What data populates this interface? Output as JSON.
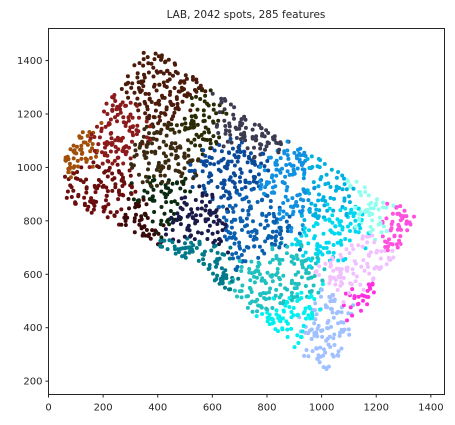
{
  "chart_data": {
    "type": "scatter",
    "title": "LAB, 2042 spots, 285 features",
    "xlabel": "",
    "ylabel": "",
    "xlim": [
      0,
      1450
    ],
    "ylim": [
      150,
      1520
    ],
    "xticks": [
      0,
      200,
      400,
      600,
      800,
      1000,
      1200,
      1400
    ],
    "yticks": [
      200,
      400,
      600,
      800,
      1000,
      1200,
      1400
    ],
    "xtick_labels": [
      "0",
      "200",
      "400",
      "600",
      "800",
      "1000",
      "1200",
      "1400"
    ],
    "ytick_labels": [
      "200",
      "400",
      "600",
      "800",
      "1000",
      "1200",
      "1400"
    ],
    "grid": false,
    "legend": "none",
    "tissue_region": {
      "description_points": [
        [
          60,
          1050
        ],
        [
          370,
          1460
        ],
        [
          790,
          1150
        ],
        [
          1350,
          820
        ],
        [
          1020,
          220
        ],
        [
          530,
          640
        ],
        [
          60,
          880
        ]
      ]
    },
    "color_regions": [
      {
        "center": [
          110,
          1150
        ],
        "color": "#a0500a"
      },
      {
        "center": [
          230,
          1150
        ],
        "color": "#8b1a1a"
      },
      {
        "center": [
          220,
          870
        ],
        "color": "#6b0d0d"
      },
      {
        "center": [
          330,
          800
        ],
        "color": "#3a0a0a"
      },
      {
        "center": [
          420,
          1270
        ],
        "color": "#4a1a0a"
      },
      {
        "center": [
          440,
          1050
        ],
        "color": "#3a2a10"
      },
      {
        "center": [
          560,
          1150
        ],
        "color": "#2a2a05"
      },
      {
        "center": [
          420,
          850
        ],
        "color": "#0a2a10"
      },
      {
        "center": [
          520,
          800
        ],
        "color": "#1a1a4a"
      },
      {
        "center": [
          640,
          1000
        ],
        "color": "#0a4a9a"
      },
      {
        "center": [
          700,
          1180
        ],
        "color": "#3a3a50"
      },
      {
        "center": [
          500,
          650
        ],
        "color": "#007a8a"
      },
      {
        "center": [
          760,
          800
        ],
        "color": "#0a60b0"
      },
      {
        "center": [
          900,
          900
        ],
        "color": "#1090e0"
      },
      {
        "center": [
          1000,
          900
        ],
        "color": "#00b0e0"
      },
      {
        "center": [
          1050,
          750
        ],
        "color": "#00d8f0"
      },
      {
        "center": [
          900,
          450
        ],
        "color": "#00f0f0"
      },
      {
        "center": [
          860,
          560
        ],
        "color": "#20c0c0"
      },
      {
        "center": [
          1000,
          400
        ],
        "color": "#a0c0ff"
      },
      {
        "center": [
          1120,
          620
        ],
        "color": "#f0c0ff"
      },
      {
        "center": [
          1200,
          500
        ],
        "color": "#ff30e0"
      },
      {
        "center": [
          1290,
          830
        ],
        "color": "#ff50e0"
      },
      {
        "center": [
          1200,
          860
        ],
        "color": "#90fff0"
      }
    ]
  }
}
